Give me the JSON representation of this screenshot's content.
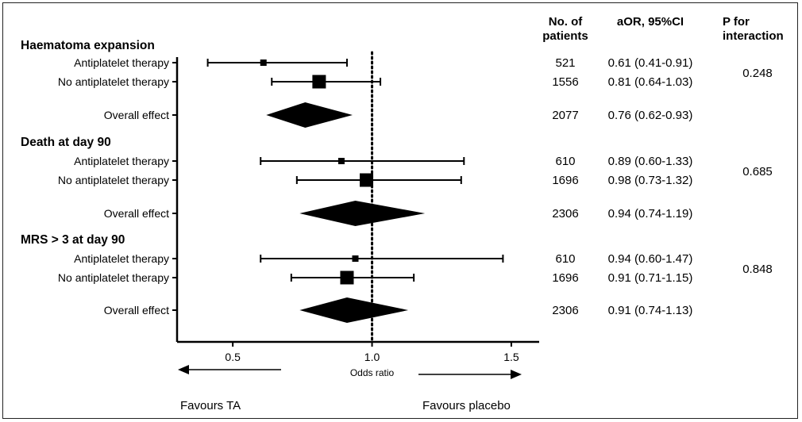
{
  "chart_data": {
    "type": "forest",
    "xlabel": "Odds ratio",
    "xlim": [
      0.3,
      1.6
    ],
    "x_ticks": [
      0.5,
      1.0,
      1.5
    ],
    "x_tick_labels": [
      "0.5",
      "1.0",
      "1.5"
    ],
    "reference_line": 1.0,
    "column_headers": {
      "n": [
        "No. of",
        "patients"
      ],
      "aor": "aOR, 95%CI",
      "p": [
        "P for",
        "interaction"
      ]
    },
    "favours_left": "Favours TA",
    "favours_right": "Favours placebo",
    "groups": [
      {
        "title": "Haematoma expansion",
        "p_interaction": "0.248",
        "rows": [
          {
            "label": "Antiplatelet therapy",
            "n": "521",
            "aor_text": "0.61 (0.41-0.91)",
            "or": 0.61,
            "lo": 0.41,
            "hi": 0.91,
            "type": "square",
            "weight": "small"
          },
          {
            "label": "No antiplatelet therapy",
            "n": "1556",
            "aor_text": "0.81 (0.64-1.03)",
            "or": 0.81,
            "lo": 0.64,
            "hi": 1.03,
            "type": "square",
            "weight": "large"
          },
          {
            "label": "Overall effect",
            "n": "2077",
            "aor_text": "0.76 (0.62-0.93)",
            "or": 0.76,
            "lo": 0.62,
            "hi": 0.93,
            "type": "diamond"
          }
        ]
      },
      {
        "title": "Death at day 90",
        "p_interaction": "0.685",
        "rows": [
          {
            "label": "Antiplatelet therapy",
            "n": "610",
            "aor_text": "0.89 (0.60-1.33)",
            "or": 0.89,
            "lo": 0.6,
            "hi": 1.33,
            "type": "square",
            "weight": "small"
          },
          {
            "label": "No antiplatelet therapy",
            "n": "1696",
            "aor_text": "0.98 (0.73-1.32)",
            "or": 0.98,
            "lo": 0.73,
            "hi": 1.32,
            "type": "square",
            "weight": "large"
          },
          {
            "label": "Overall effect",
            "n": "2306",
            "aor_text": "0.94 (0.74-1.19)",
            "or": 0.94,
            "lo": 0.74,
            "hi": 1.19,
            "type": "diamond"
          }
        ]
      },
      {
        "title": "MRS > 3 at day 90",
        "p_interaction": "0.848",
        "rows": [
          {
            "label": "Antiplatelet therapy",
            "n": "610",
            "aor_text": "0.94 (0.60-1.47)",
            "or": 0.94,
            "lo": 0.6,
            "hi": 1.47,
            "type": "square",
            "weight": "small"
          },
          {
            "label": "No antiplatelet therapy",
            "n": "1696",
            "aor_text": "0.91 (0.71-1.15)",
            "or": 0.91,
            "lo": 0.71,
            "hi": 1.15,
            "type": "square",
            "weight": "large"
          },
          {
            "label": "Overall effect",
            "n": "2306",
            "aor_text": "0.91 (0.74-1.13)",
            "or": 0.91,
            "lo": 0.74,
            "hi": 1.13,
            "type": "diamond"
          }
        ]
      }
    ]
  }
}
